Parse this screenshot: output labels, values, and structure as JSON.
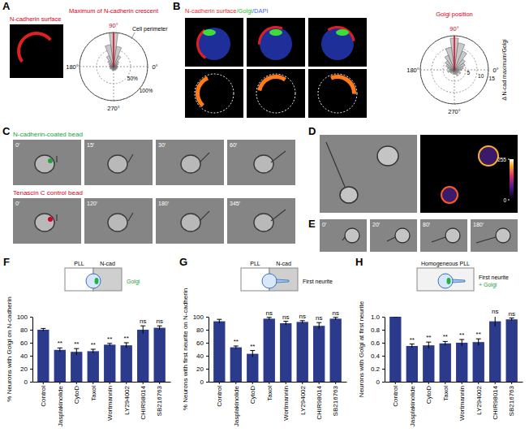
{
  "chart_data": [
    {
      "type": "polar_bar",
      "panel": "A",
      "title": "Maximum of N-cadherin crescent",
      "annotations": [
        "Cell perimeter"
      ],
      "x": [
        0,
        15,
        30,
        45,
        60,
        75,
        90,
        105,
        120,
        135,
        150,
        165,
        180,
        195,
        210,
        225,
        240,
        255,
        270,
        285,
        300,
        315,
        330,
        345
      ],
      "values": [
        12,
        10,
        15,
        20,
        35,
        60,
        100,
        65,
        35,
        22,
        15,
        12,
        10,
        10,
        12,
        10,
        8,
        12,
        10,
        10,
        12,
        10,
        12,
        10
      ],
      "xlim": [
        0,
        360
      ],
      "xticks": [
        {
          "value": 0,
          "label": "0°"
        },
        {
          "value": 90,
          "label": "90°"
        },
        {
          "value": 180,
          "label": "180°"
        },
        {
          "value": 270,
          "label": "270°"
        }
      ],
      "ylim": [
        0,
        100
      ],
      "yticks": [
        {
          "value": 50,
          "label": "50%"
        },
        {
          "value": 100,
          "label": "100%"
        }
      ],
      "color": "#c8c8c8",
      "grid": true
    },
    {
      "type": "polar_bar",
      "panel": "B",
      "title": "Golgi position",
      "ylabel": "Δ N-cad maximum/Golgi",
      "x": [
        0,
        15,
        30,
        45,
        60,
        75,
        90,
        105,
        120,
        135,
        150,
        165,
        180,
        195,
        210,
        225,
        240,
        255,
        270,
        285,
        300,
        315,
        330,
        345
      ],
      "values": [
        3,
        4,
        5,
        6,
        9,
        12,
        14,
        10,
        7,
        5,
        4,
        3,
        2,
        3,
        2,
        2,
        1,
        2,
        1,
        2,
        3,
        2,
        3,
        2
      ],
      "xlim": [
        0,
        360
      ],
      "xticks": [
        {
          "value": 0,
          "label": "0°"
        },
        {
          "value": 90,
          "label": "90°"
        },
        {
          "value": 180,
          "label": "180°"
        },
        {
          "value": 270,
          "label": "270°"
        }
      ],
      "ylim": [
        0,
        15
      ],
      "yticks": [
        5,
        10,
        15
      ],
      "color": "#c8c8c8",
      "grid": true
    },
    {
      "type": "bar",
      "panel": "F",
      "ylabel": "% Neurons with Golgi on N-cadherin",
      "inset_regions": [
        "PLL",
        "N-cad"
      ],
      "inset_labels": [
        "Golgi"
      ],
      "categories": [
        "Control",
        "Jasplakinolide",
        "CytoD",
        "Taxol",
        "Wortmannin",
        "LY294002",
        "CHIR98014",
        "SB216763"
      ],
      "values": [
        80,
        49,
        46,
        47,
        57,
        56,
        80,
        83
      ],
      "errors": [
        2,
        3,
        5,
        3,
        2,
        4,
        6,
        3
      ],
      "annotations": [
        null,
        "**",
        "**",
        "**",
        "**",
        "**",
        "ns",
        "ns"
      ],
      "ylim": [
        0,
        100
      ],
      "yticks": [
        0,
        20,
        40,
        60,
        80,
        100
      ],
      "color": "#2c3a8c"
    },
    {
      "type": "bar",
      "panel": "G",
      "ylabel": "% Neurons with first neurite on N-cadherin",
      "inset_regions": [
        "PLL",
        "N-cad"
      ],
      "inset_labels": [
        "First neurite"
      ],
      "categories": [
        "Control",
        "Jasplakinolide",
        "CytoD",
        "Taxol",
        "Wortmannin",
        "LY294002",
        "CHIR98014",
        "SB216763"
      ],
      "values": [
        93,
        53,
        43,
        97,
        90,
        92,
        86,
        97
      ],
      "errors": [
        3,
        2,
        5,
        2,
        3,
        2,
        5,
        2
      ],
      "annotations": [
        null,
        "**",
        "**",
        "ns",
        "ns",
        "ns",
        "ns",
        "ns"
      ],
      "ylim": [
        0,
        100
      ],
      "yticks": [
        0,
        20,
        40,
        60,
        80,
        100
      ],
      "color": "#2c3a8c"
    },
    {
      "type": "bar",
      "panel": "H",
      "ylabel": "Neurons with Golgi at first neurite",
      "inset_title": "Homogeneous PLL",
      "inset_labels": [
        "First neurite",
        "+ Golgi"
      ],
      "categories": [
        "Control",
        "Jasplakinolide",
        "CytoD",
        "Taxol",
        "Wortmannin",
        "LY294002",
        "CHIR98014",
        "SB216763"
      ],
      "values": [
        1,
        0.55,
        0.56,
        0.59,
        0.6,
        0.61,
        0.93,
        0.96
      ],
      "errors": [
        0,
        0.03,
        0.05,
        0.03,
        0.05,
        0.05,
        0.08,
        0.02
      ],
      "annotations": [
        null,
        "**",
        "**",
        "**",
        "**",
        "**",
        "ns",
        "ns"
      ],
      "ylim": [
        0,
        1
      ],
      "yticks": [
        0,
        0.2,
        0.4,
        0.6,
        0.8,
        {
          "value": 1,
          "label": "1.0"
        }
      ],
      "color": "#2c3a8c"
    }
  ],
  "figure": {
    "A": {
      "label": "A",
      "image_title": "N-cadherin surface"
    },
    "B": {
      "label": "B",
      "image_title": [
        "N-cadherin surface",
        "/Golgi",
        "/DAPI"
      ]
    },
    "C": {
      "label": "C",
      "rows": [
        {
          "title": "N-cadherin-coated bead",
          "times": [
            "0′",
            "15′",
            "30′",
            "60′"
          ]
        },
        {
          "title": "Tenascin C control bead",
          "times": [
            "0′",
            "120′",
            "180′",
            "345′"
          ]
        }
      ]
    },
    "D": {
      "label": "D",
      "colorbar_ticks": [
        255,
        0
      ]
    },
    "E": {
      "label": "E",
      "times": [
        "0′",
        "20′",
        "80′",
        "180′"
      ]
    }
  }
}
